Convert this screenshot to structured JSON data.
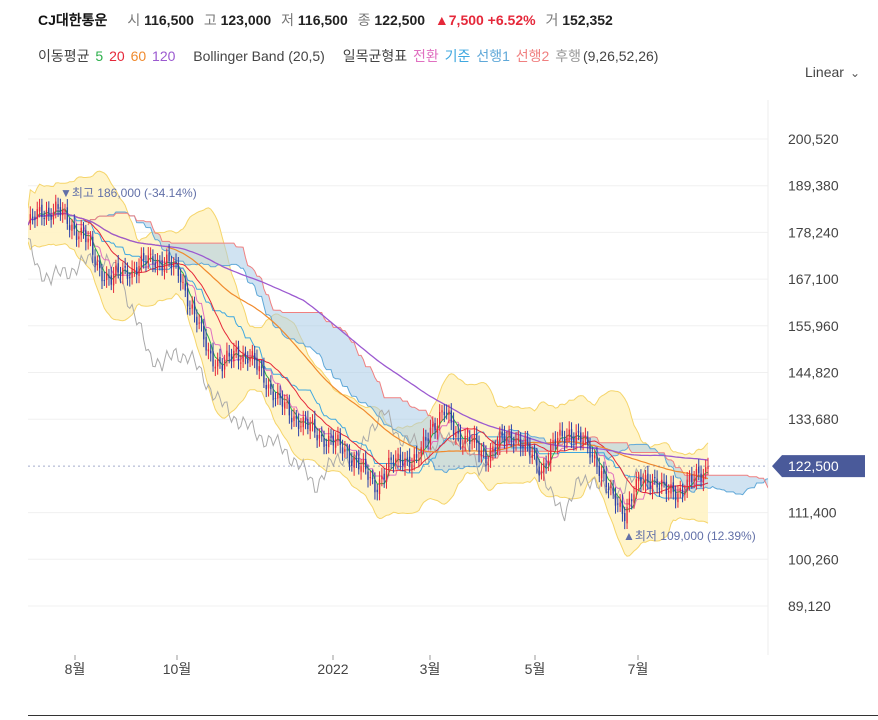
{
  "header": {
    "name": "CJ대한통운",
    "open_label": "시",
    "open": "116,500",
    "high_label": "고",
    "high": "123,000",
    "low_label": "저",
    "low": "116,500",
    "close_label": "종",
    "close": "122,500",
    "change": "▲7,500 +6.52%",
    "volume_label": "거",
    "volume": "152,352"
  },
  "legend": {
    "ma_label": "이동평균",
    "ma5": "5",
    "ma20": "20",
    "ma60": "60",
    "ma120": "120",
    "bb": "Bollinger Band (20,5)",
    "ichimoku": "일목균형표",
    "tenkan": "전환",
    "kijun": "기준",
    "span1": "선행1",
    "span2": "선행2",
    "lagging": "후행",
    "ichimoku_params": "(9,26,52,26)"
  },
  "scale_selector": "Linear",
  "colors": {
    "up": "#e5283a",
    "down": "#2a3fa8",
    "ma5": "#2db04c",
    "ma20": "#e5283a",
    "ma60": "#f08a2d",
    "ma120": "#9b59d0",
    "bb_fill": "#fff3c4",
    "bb_line": "#f5d56b",
    "tenkan": "#e070c0",
    "kijun": "#3fa8e0",
    "span1": "#5fa8d8",
    "span2": "#f08080",
    "lagging": "#aaaaaa",
    "price_tag": "#4a5a9a"
  },
  "chart_data": {
    "type": "candlestick",
    "y_ticks": [
      200520,
      189380,
      178240,
      167100,
      155960,
      144820,
      133680,
      111400,
      100260,
      89120
    ],
    "y_tick_labels": [
      "200,520",
      "189,380",
      "178,240",
      "167,100",
      "155,960",
      "144,820",
      "133,680",
      "111,400",
      "100,260",
      "89,120"
    ],
    "ylim": [
      81000,
      205000
    ],
    "x_tick_labels": [
      "8월",
      "10월",
      "2022",
      "3월",
      "5월",
      "7월"
    ],
    "current_price_label": "122,500",
    "high_annotation": "▼최고 186,000 (-34.14%)",
    "low_annotation": "▲최저 109,000 (12.39%)",
    "close_series_approx": [
      [
        0,
        180000
      ],
      [
        6,
        183000
      ],
      [
        12,
        184000
      ],
      [
        18,
        180000
      ],
      [
        24,
        178000
      ],
      [
        30,
        170000
      ],
      [
        36,
        167000
      ],
      [
        42,
        169000
      ],
      [
        48,
        170000
      ],
      [
        54,
        172000
      ],
      [
        60,
        171000
      ],
      [
        66,
        168000
      ],
      [
        72,
        158000
      ],
      [
        78,
        150000
      ],
      [
        84,
        146000
      ],
      [
        90,
        150000
      ],
      [
        96,
        148000
      ],
      [
        102,
        144000
      ],
      [
        108,
        138000
      ],
      [
        114,
        135000
      ],
      [
        120,
        132000
      ],
      [
        126,
        130000
      ],
      [
        132,
        128000
      ],
      [
        138,
        126000
      ],
      [
        144,
        122000
      ],
      [
        150,
        118000
      ],
      [
        156,
        122000
      ],
      [
        162,
        125000
      ],
      [
        168,
        123000
      ],
      [
        174,
        132000
      ],
      [
        180,
        135000
      ],
      [
        186,
        130000
      ],
      [
        192,
        128000
      ],
      [
        198,
        125000
      ],
      [
        204,
        128000
      ],
      [
        210,
        130000
      ],
      [
        216,
        126000
      ],
      [
        222,
        122000
      ],
      [
        228,
        128000
      ],
      [
        234,
        131000
      ],
      [
        240,
        128000
      ],
      [
        246,
        124000
      ],
      [
        252,
        115000
      ],
      [
        258,
        112000
      ],
      [
        264,
        118000
      ],
      [
        270,
        120000
      ],
      [
        276,
        116000
      ],
      [
        282,
        117000
      ],
      [
        288,
        119000
      ],
      [
        294,
        122500
      ]
    ]
  }
}
